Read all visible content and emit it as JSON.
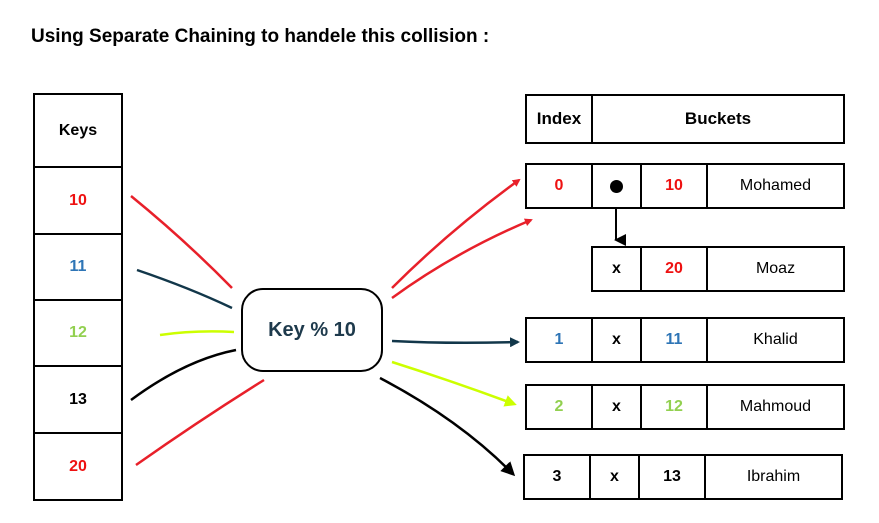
{
  "title": "Using Separate Chaining to handele this collision :",
  "keys_header": "Keys",
  "keys": [
    {
      "value": "10",
      "color": "#ee1111"
    },
    {
      "value": "11",
      "color": "#2e75b6"
    },
    {
      "value": "12",
      "color": "#92d050"
    },
    {
      "value": "13",
      "color": "#000000"
    },
    {
      "value": "20",
      "color": "#ee1111"
    }
  ],
  "hash_function": "Key % 10",
  "table_header": {
    "index": "Index",
    "buckets": "Buckets"
  },
  "buckets": [
    {
      "index": "0",
      "link": "•",
      "key": "10",
      "name": "Mohamed",
      "color": "#ee1111"
    },
    {
      "index": "",
      "link": "x",
      "key": "20",
      "name": "Moaz",
      "color": "#ee1111"
    },
    {
      "index": "1",
      "link": "x",
      "key": "11",
      "name": "Khalid",
      "color": "#2e75b6"
    },
    {
      "index": "2",
      "link": "x",
      "key": "12",
      "name": "Mahmoud",
      "color": "#92d050"
    },
    {
      "index": "3",
      "link": "x",
      "key": "13",
      "name": "Ibrahim",
      "color": "#000000"
    }
  ],
  "colors": {
    "red": "#ee1111",
    "navy": "#12374a",
    "lime": "#ccff00",
    "black": "#000000"
  }
}
